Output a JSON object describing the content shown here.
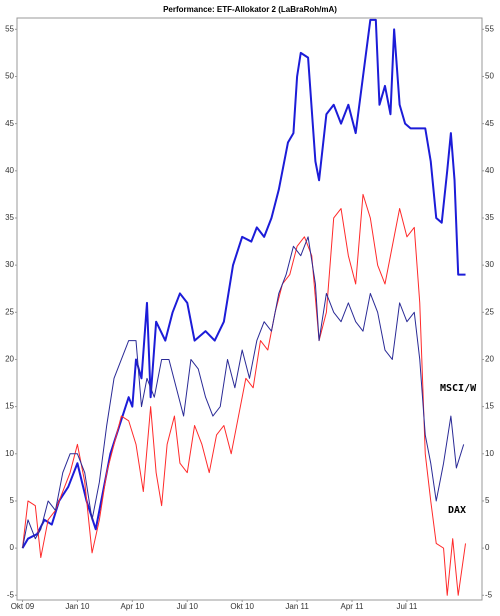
{
  "chart_data": {
    "type": "line",
    "title": "Performance: ETF-Allokator 2 (LaBraRoh/mA)",
    "xlim": [
      -0.3,
      25.1
    ],
    "xticks": [
      {
        "value": 0,
        "label": "Okt 09"
      },
      {
        "value": 3,
        "label": "Jan 10"
      },
      {
        "value": 6,
        "label": "Apr 10"
      },
      {
        "value": 9,
        "label": "Jul 10"
      },
      {
        "value": 12,
        "label": "Okt 10"
      },
      {
        "value": 15,
        "label": "Jan 11"
      },
      {
        "value": 18,
        "label": "Apr 11"
      },
      {
        "value": 21,
        "label": "Jul 11"
      }
    ],
    "ylim": [
      -5.5,
      56.2
    ],
    "yticks": [
      -5,
      0,
      5,
      10,
      15,
      20,
      25,
      30,
      35,
      40,
      45,
      50,
      55
    ],
    "right_axis": true,
    "series": [
      {
        "color": "#1c1cd8",
        "width": 2,
        "x": [
          0,
          0.3,
          0.8,
          1.2,
          1.6,
          2,
          2.5,
          3,
          3.5,
          4,
          4.3,
          4.8,
          5.3,
          5.8,
          6,
          6.2,
          6.5,
          6.8,
          7,
          7.3,
          7.8,
          8.2,
          8.6,
          9,
          9.4,
          10,
          10.5,
          11,
          11.5,
          12,
          12.5,
          12.8,
          13.2,
          13.6,
          14,
          14.5,
          14.8,
          15,
          15.2,
          15.6,
          16,
          16.2,
          16.6,
          17,
          17.4,
          17.8,
          18.2,
          18.6,
          19,
          19.3,
          19.5,
          19.8,
          20.1,
          20.3,
          20.6,
          20.9,
          21.2,
          21.6,
          22,
          22.3,
          22.6,
          22.9,
          23.2,
          23.4,
          23.6,
          23.8,
          24.2
        ],
        "values": [
          0,
          1,
          1.5,
          3,
          2.5,
          5,
          6.5,
          9,
          5,
          2,
          5,
          10,
          13,
          16,
          15,
          20,
          18,
          26,
          16,
          24,
          22,
          25,
          27,
          26,
          22,
          23,
          22,
          24,
          30,
          33,
          32.5,
          34,
          33,
          35,
          38,
          43,
          44,
          50,
          52.5,
          52,
          41,
          39,
          46,
          47,
          45,
          47,
          44,
          50,
          56,
          56,
          47,
          49,
          46,
          55,
          47,
          45,
          44.5,
          44.5,
          44.5,
          41,
          35,
          34.5,
          40,
          44,
          39,
          29,
          29
        ]
      },
      {
        "name": "DAX",
        "color": "#ff2a2a",
        "width": 1,
        "x": [
          0,
          0.3,
          0.7,
          1,
          1.4,
          1.8,
          2.2,
          2.6,
          3,
          3.4,
          3.8,
          4.2,
          4.6,
          5,
          5.4,
          5.8,
          6.2,
          6.6,
          7,
          7.3,
          7.6,
          7.9,
          8.3,
          8.6,
          9,
          9.4,
          9.8,
          10.2,
          10.6,
          11,
          11.4,
          11.8,
          12.2,
          12.6,
          13,
          13.4,
          13.8,
          14.2,
          14.6,
          15,
          15.4,
          15.8,
          16.2,
          16.6,
          17,
          17.4,
          17.8,
          18.2,
          18.6,
          19,
          19.4,
          19.8,
          20.2,
          20.6,
          21,
          21.4,
          21.7,
          22,
          22.3,
          22.6,
          23,
          23.2,
          23.5,
          23.8,
          24.2
        ],
        "values": [
          0,
          5,
          4.5,
          -1,
          3,
          4,
          6,
          8,
          11,
          7,
          -0.5,
          3,
          8,
          11,
          14,
          13.5,
          11,
          6,
          15,
          8,
          4.5,
          11,
          14,
          9,
          8,
          13,
          11,
          8,
          12,
          13,
          10,
          14,
          18,
          17,
          22,
          21,
          25,
          28,
          29,
          32,
          33,
          31,
          22,
          25,
          35,
          36,
          31,
          28,
          37.5,
          35,
          30,
          28,
          32,
          36,
          33,
          34,
          26,
          10,
          5,
          0.5,
          0,
          -5,
          1,
          -5,
          0.5
        ]
      },
      {
        "name": "MSCI/W",
        "color": "#2a2a96",
        "width": 1,
        "x": [
          0,
          0.3,
          0.7,
          1,
          1.4,
          1.8,
          2.2,
          2.6,
          3,
          3.4,
          3.8,
          4.2,
          4.6,
          5,
          5.4,
          5.8,
          6.2,
          6.5,
          6.8,
          7.2,
          7.6,
          8,
          8.4,
          8.8,
          9.2,
          9.6,
          10,
          10.4,
          10.8,
          11.2,
          11.6,
          12,
          12.4,
          12.8,
          13.2,
          13.6,
          14,
          14.4,
          14.8,
          15.2,
          15.6,
          16,
          16.2,
          16.6,
          17,
          17.4,
          17.8,
          18.2,
          18.6,
          19,
          19.4,
          19.8,
          20.2,
          20.6,
          21,
          21.4,
          21.7,
          22,
          22.3,
          22.6,
          23,
          23.4,
          23.7,
          24.1
        ],
        "values": [
          0,
          3,
          1,
          2,
          5,
          4,
          8,
          10,
          10,
          8,
          3,
          7,
          13,
          18,
          20,
          22,
          22,
          15,
          18,
          16,
          20,
          20,
          17,
          14,
          20,
          19,
          16,
          14,
          15,
          20,
          17,
          21,
          18,
          22,
          24,
          23,
          27,
          29,
          32,
          31,
          33,
          28,
          22,
          27,
          25,
          24,
          26,
          24,
          23,
          27,
          25,
          21,
          20,
          26,
          24,
          25,
          20,
          12,
          9,
          5,
          9,
          14,
          8.5,
          11
        ]
      }
    ]
  }
}
